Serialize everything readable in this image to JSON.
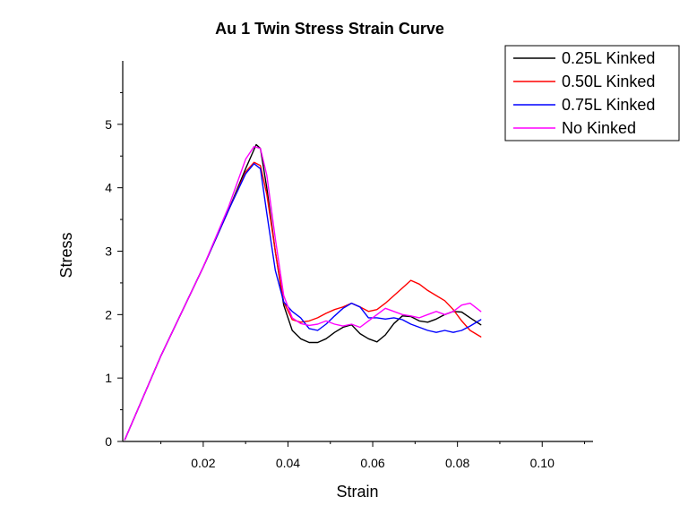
{
  "chart_data": {
    "type": "line",
    "title": "Au 1 Twin Stress Strain Curve",
    "xlabel": "Strain",
    "ylabel": "Stress",
    "xlim": [
      0.001,
      0.112
    ],
    "ylim": [
      0,
      6.0
    ],
    "xticks": [
      0.02,
      0.04,
      0.06,
      0.08,
      0.1
    ],
    "xtick_labels": [
      "0.02",
      "0.04",
      "0.06",
      "0.08",
      "0.10"
    ],
    "yticks": [
      0,
      1,
      2,
      3,
      4,
      5
    ],
    "ytick_labels": [
      "0",
      "1",
      "2",
      "3",
      "4",
      "5"
    ],
    "grid": false,
    "legend_position": "top-right",
    "series": [
      {
        "name": "0.25L Kinked",
        "color": "#000000",
        "x": [
          0.0015,
          0.01,
          0.02,
          0.026,
          0.03,
          0.0325,
          0.0335,
          0.035,
          0.037,
          0.039,
          0.041,
          0.043,
          0.045,
          0.047,
          0.049,
          0.051,
          0.053,
          0.055,
          0.057,
          0.059,
          0.061,
          0.063,
          0.065,
          0.067,
          0.069,
          0.071,
          0.073,
          0.075,
          0.077,
          0.079,
          0.081,
          0.083,
          0.0855
        ],
        "y": [
          0.03,
          1.35,
          2.75,
          3.65,
          4.3,
          4.68,
          4.62,
          4.0,
          3.0,
          2.15,
          1.75,
          1.62,
          1.56,
          1.56,
          1.62,
          1.72,
          1.8,
          1.84,
          1.7,
          1.62,
          1.57,
          1.68,
          1.86,
          1.98,
          1.97,
          1.9,
          1.88,
          1.93,
          2.0,
          2.05,
          2.04,
          1.95,
          1.84
        ]
      },
      {
        "name": "0.50L Kinked",
        "color": "#ff0000",
        "x": [
          0.0015,
          0.01,
          0.02,
          0.026,
          0.03,
          0.032,
          0.0335,
          0.035,
          0.037,
          0.039,
          0.041,
          0.043,
          0.045,
          0.047,
          0.049,
          0.051,
          0.053,
          0.055,
          0.057,
          0.059,
          0.061,
          0.063,
          0.065,
          0.067,
          0.069,
          0.071,
          0.073,
          0.075,
          0.077,
          0.079,
          0.081,
          0.083,
          0.0855
        ],
        "y": [
          0.03,
          1.35,
          2.75,
          3.65,
          4.25,
          4.4,
          4.35,
          3.9,
          3.0,
          2.2,
          1.92,
          1.88,
          1.9,
          1.95,
          2.02,
          2.08,
          2.12,
          2.18,
          2.12,
          2.05,
          2.08,
          2.18,
          2.3,
          2.42,
          2.54,
          2.48,
          2.38,
          2.3,
          2.22,
          2.08,
          1.9,
          1.75,
          1.65
        ]
      },
      {
        "name": "0.75L Kinked",
        "color": "#0000ff",
        "x": [
          0.0015,
          0.01,
          0.02,
          0.026,
          0.03,
          0.032,
          0.0335,
          0.035,
          0.037,
          0.039,
          0.041,
          0.043,
          0.045,
          0.047,
          0.049,
          0.051,
          0.053,
          0.055,
          0.057,
          0.059,
          0.061,
          0.063,
          0.065,
          0.067,
          0.069,
          0.071,
          0.073,
          0.075,
          0.077,
          0.079,
          0.081,
          0.083,
          0.0855
        ],
        "y": [
          0.03,
          1.35,
          2.75,
          3.65,
          4.22,
          4.38,
          4.3,
          3.6,
          2.7,
          2.2,
          2.05,
          1.95,
          1.78,
          1.75,
          1.85,
          1.98,
          2.1,
          2.18,
          2.12,
          1.95,
          1.95,
          1.93,
          1.95,
          1.92,
          1.85,
          1.8,
          1.75,
          1.72,
          1.75,
          1.72,
          1.75,
          1.82,
          1.92
        ]
      },
      {
        "name": "No Kinked",
        "color": "#ff00ff",
        "x": [
          0.0015,
          0.01,
          0.02,
          0.026,
          0.03,
          0.032,
          0.0335,
          0.035,
          0.037,
          0.039,
          0.041,
          0.043,
          0.045,
          0.047,
          0.049,
          0.051,
          0.053,
          0.055,
          0.057,
          0.059,
          0.061,
          0.063,
          0.065,
          0.067,
          0.069,
          0.071,
          0.073,
          0.075,
          0.077,
          0.079,
          0.081,
          0.083,
          0.0855
        ],
        "y": [
          0.03,
          1.35,
          2.75,
          3.7,
          4.45,
          4.65,
          4.62,
          4.2,
          3.2,
          2.3,
          1.95,
          1.86,
          1.83,
          1.85,
          1.9,
          1.85,
          1.82,
          1.85,
          1.8,
          1.9,
          2.0,
          2.1,
          2.05,
          2.0,
          1.98,
          1.95,
          2.0,
          2.05,
          2.0,
          2.05,
          2.15,
          2.18,
          2.05
        ]
      }
    ]
  }
}
